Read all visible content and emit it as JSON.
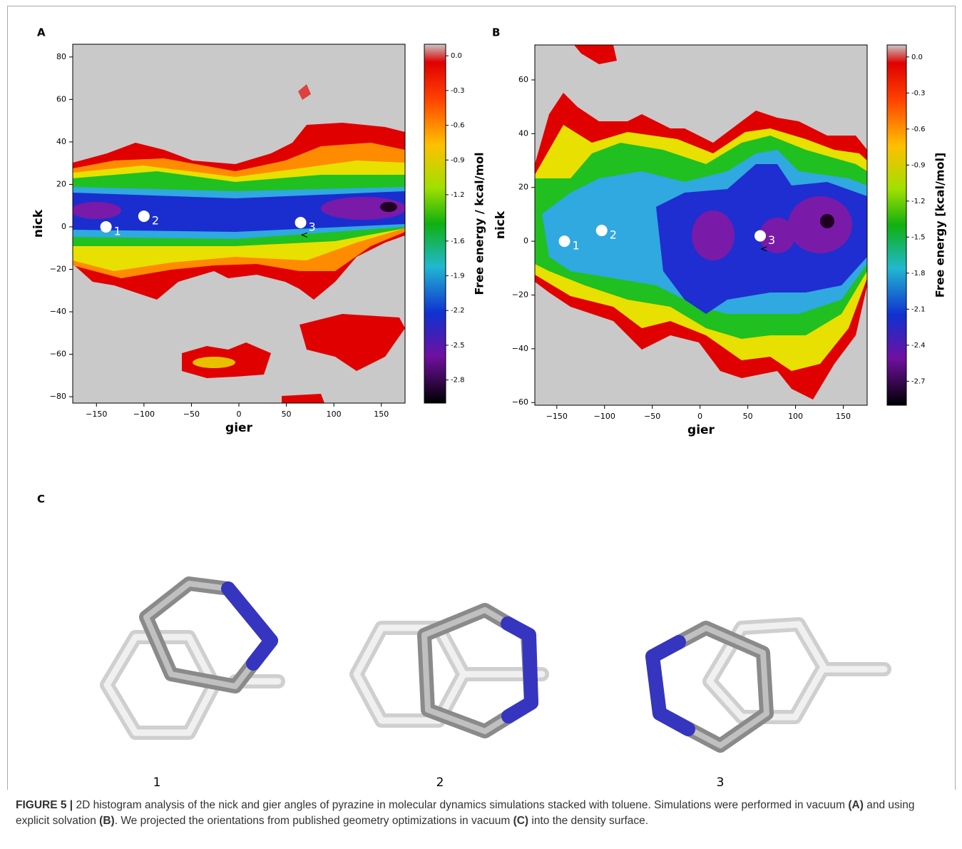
{
  "chart_data": [
    {
      "type": "contour",
      "panel": "A",
      "xlabel": "gier",
      "ylabel": "nick",
      "xlim": [
        -175,
        175
      ],
      "ylim": [
        -83,
        86
      ],
      "xticks": [
        {
          "value": -150,
          "label": "−150"
        },
        {
          "value": -100,
          "label": "−100"
        },
        {
          "value": -50,
          "label": "−50"
        },
        0,
        50,
        100,
        150
      ],
      "yticks": [
        {
          "value": -80,
          "label": "−80"
        },
        {
          "value": -60,
          "label": "−60"
        },
        {
          "value": -40,
          "label": "−40"
        },
        {
          "value": -20,
          "label": "−20"
        },
        0,
        20,
        40,
        60,
        80
      ],
      "colorbar": {
        "label": "Free energy / kcal/mol",
        "lim": [
          -3.0,
          0.1
        ],
        "ticks": [
          {
            "value": 0.0,
            "label": "0.0"
          },
          {
            "value": -0.3,
            "label": "-0.3"
          },
          {
            "value": -0.6,
            "label": "-0.6"
          },
          {
            "value": -0.9,
            "label": "-0.9"
          },
          {
            "value": -1.2,
            "label": "-1.2"
          },
          {
            "value": -1.6,
            "label": "-1.6"
          },
          {
            "value": -1.9,
            "label": "-1.9"
          },
          {
            "value": -2.2,
            "label": "-2.2"
          },
          {
            "value": -2.5,
            "label": "-2.5"
          },
          {
            "value": -2.8,
            "label": "-2.8"
          }
        ]
      },
      "points": [
        {
          "label": "1",
          "x": -140,
          "y": 0
        },
        {
          "label": "2",
          "x": -100,
          "y": 5
        },
        {
          "label": "3",
          "x": 65,
          "y": 2
        }
      ],
      "annotations": [
        {
          "text": "<",
          "x": 69,
          "y": -4
        }
      ]
    },
    {
      "type": "contour",
      "panel": "B",
      "xlabel": "gier",
      "ylabel": "nick",
      "xlim": [
        -173,
        175
      ],
      "ylim": [
        -61,
        73
      ],
      "xticks": [
        {
          "value": -150,
          "label": "−150"
        },
        {
          "value": -100,
          "label": "−100"
        },
        {
          "value": -50,
          "label": "−50"
        },
        0,
        50,
        100,
        150
      ],
      "yticks": [
        {
          "value": -60,
          "label": "−60"
        },
        {
          "value": -40,
          "label": "−40"
        },
        {
          "value": -20,
          "label": "−20"
        },
        0,
        20,
        40,
        60
      ],
      "colorbar": {
        "label": "Free energy [kcal/mol]",
        "lim": [
          -2.9,
          0.1
        ],
        "ticks": [
          {
            "value": 0.0,
            "label": "0.0"
          },
          {
            "value": -0.3,
            "label": "-0.3"
          },
          {
            "value": -0.6,
            "label": "-0.6"
          },
          {
            "value": -0.9,
            "label": "-0.9"
          },
          {
            "value": -1.2,
            "label": "-1.2"
          },
          {
            "value": -1.5,
            "label": "-1.5"
          },
          {
            "value": -1.8,
            "label": "-1.8"
          },
          {
            "value": -2.1,
            "label": "-2.1"
          },
          {
            "value": -2.4,
            "label": "-2.4"
          },
          {
            "value": -2.7,
            "label": "-2.7"
          }
        ]
      },
      "points": [
        {
          "label": "1",
          "x": -142,
          "y": 0
        },
        {
          "label": "2",
          "x": -103,
          "y": 4
        },
        {
          "label": "3",
          "x": 63,
          "y": 2
        }
      ],
      "annotations": [
        {
          "text": "<",
          "x": 67,
          "y": -3
        }
      ]
    }
  ],
  "structures": {
    "panel": "C",
    "labels": [
      "1",
      "2",
      "3"
    ]
  },
  "caption": {
    "label": "FIGURE 5 |",
    "parts": [
      "2D histogram analysis of the nick and gier angles of pyrazine in molecular dynamics simulations stacked with toluene. Simulations were performed in vacuum ",
      "(A)",
      " and using explicit solvation ",
      "(B)",
      ". We projected the orientations from published geometry optimizations in vacuum ",
      "(C)",
      " into the density surface."
    ]
  }
}
